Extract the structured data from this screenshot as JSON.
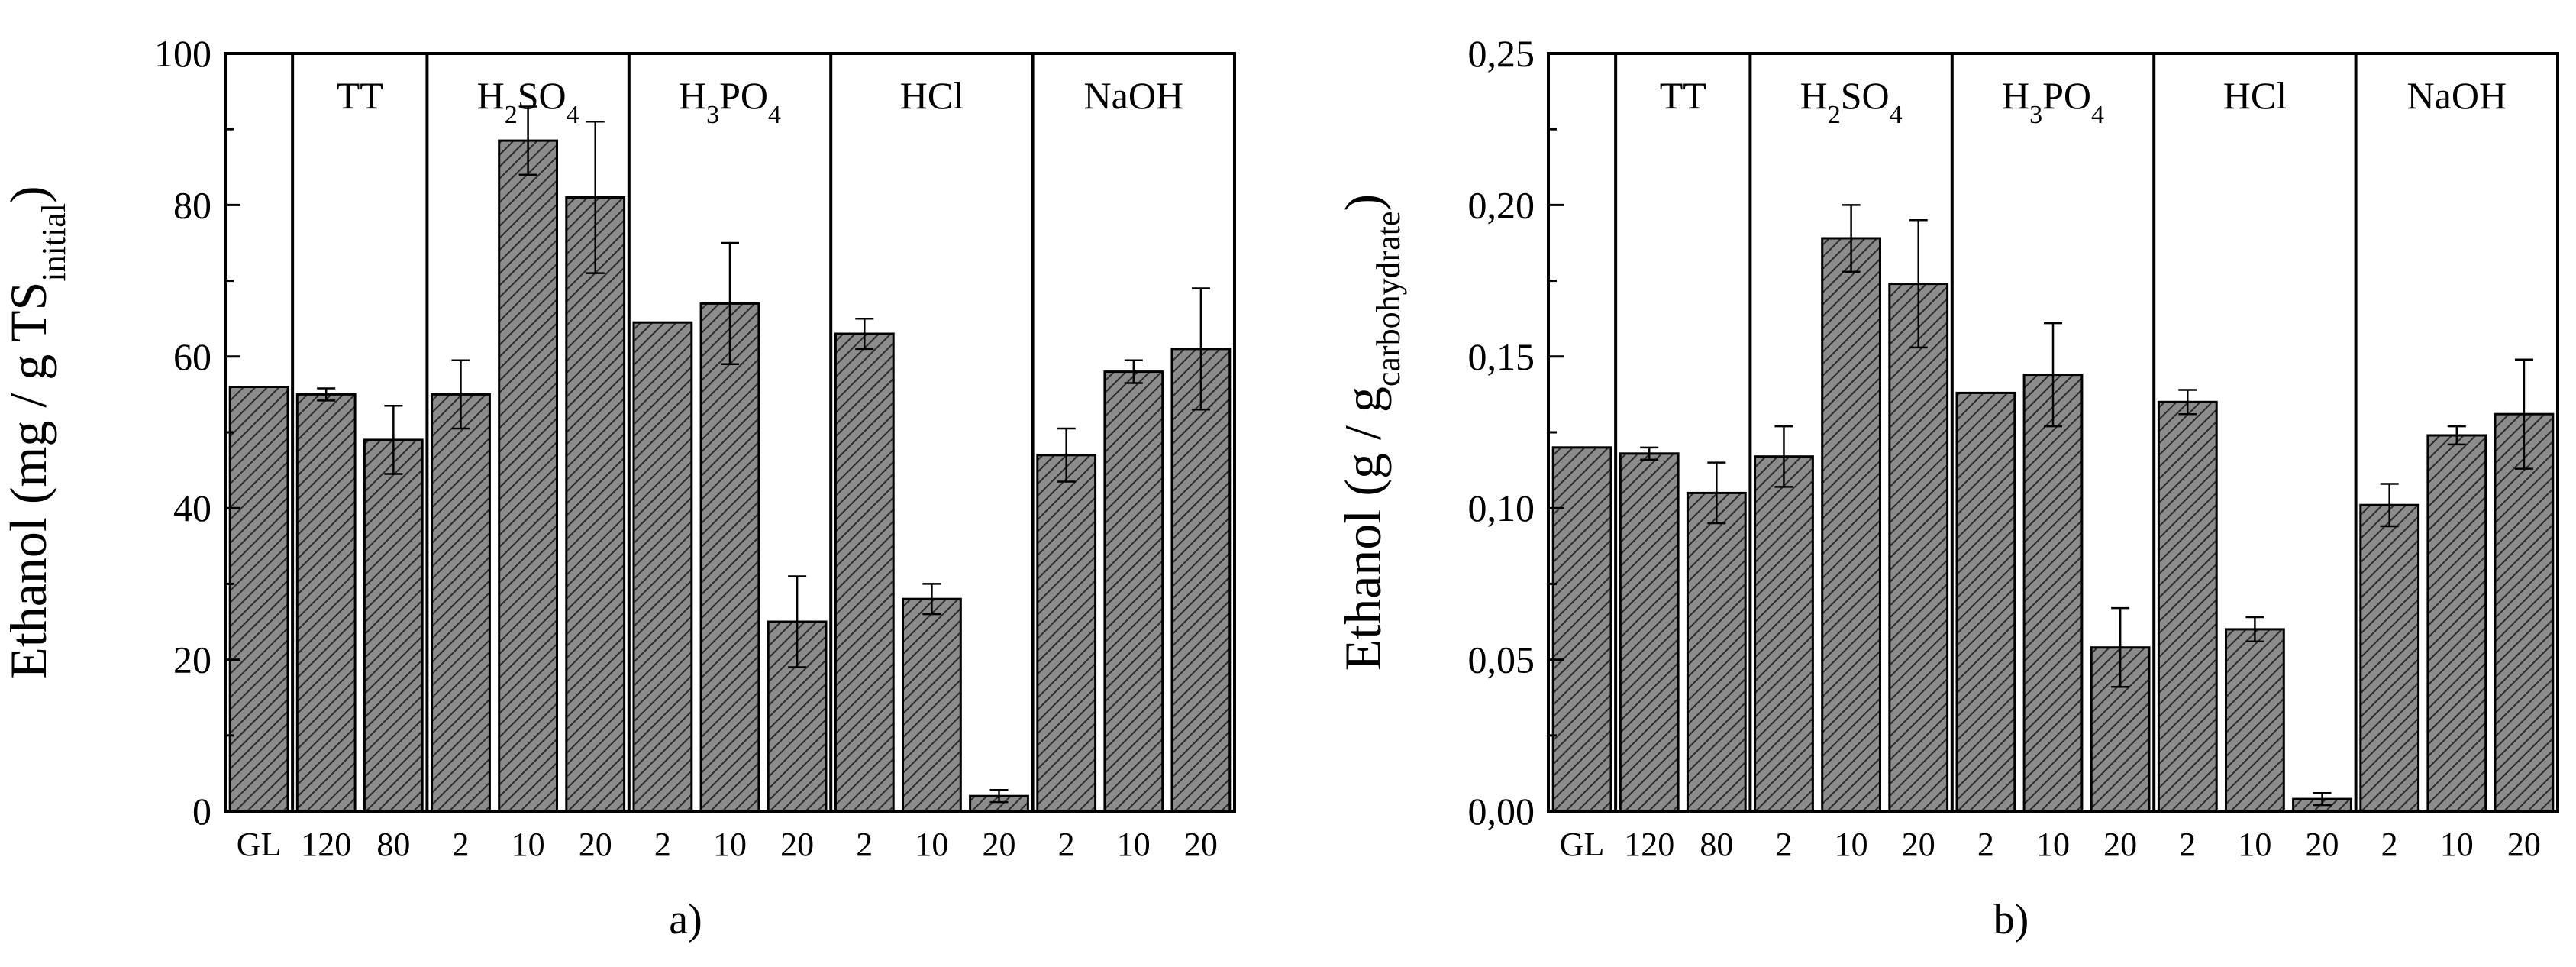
{
  "chart_data": [
    {
      "type": "bar",
      "panel_label": "a)",
      "ylabel": {
        "main": "Ethanol (mg / g TS",
        "sub": "initial",
        "close": ")"
      },
      "ylim": [
        0,
        100
      ],
      "yticks": [
        0,
        20,
        40,
        60,
        80,
        100
      ],
      "yticks_labels": [
        "0",
        "20",
        "40",
        "60",
        "80",
        "100"
      ],
      "categories": [
        "GL",
        "120",
        "80",
        "2",
        "10",
        "20",
        "2",
        "10",
        "20",
        "2",
        "10",
        "20",
        "2",
        "10",
        "20"
      ],
      "values": [
        56,
        55,
        49,
        55,
        88.5,
        81,
        64.5,
        67,
        25,
        63,
        28,
        2,
        47,
        58,
        61
      ],
      "errors": [
        0,
        0.8,
        4.5,
        4.5,
        4.5,
        10,
        0,
        8,
        6,
        2,
        2,
        0.8,
        3.5,
        1.5,
        8
      ],
      "groups": [
        {
          "label": "TT",
          "parts": [
            {
              "t": "TT",
              "sub": false
            }
          ]
        },
        {
          "label": "H2SO4",
          "parts": [
            {
              "t": "H",
              "sub": false
            },
            {
              "t": "2",
              "sub": true
            },
            {
              "t": "SO",
              "sub": false
            },
            {
              "t": "4",
              "sub": true
            }
          ]
        },
        {
          "label": "H3PO4",
          "parts": [
            {
              "t": "H",
              "sub": false
            },
            {
              "t": "3",
              "sub": true
            },
            {
              "t": "PO",
              "sub": false
            },
            {
              "t": "4",
              "sub": true
            }
          ]
        },
        {
          "label": "HCl",
          "parts": [
            {
              "t": "HCl",
              "sub": false
            }
          ]
        },
        {
          "label": "NaOH",
          "parts": [
            {
              "t": "NaOH",
              "sub": false
            }
          ]
        }
      ]
    },
    {
      "type": "bar",
      "panel_label": "b)",
      "ylabel": {
        "main": "Ethanol (g / g",
        "sub": "carbohydrate",
        "close": ")"
      },
      "ylim": [
        0,
        0.25
      ],
      "yticks": [
        0,
        0.05,
        0.1,
        0.15,
        0.2,
        0.25
      ],
      "yticks_labels": [
        "0,00",
        "0,05",
        "0,10",
        "0,15",
        "0,20",
        "0,25"
      ],
      "categories": [
        "GL",
        "120",
        "80",
        "2",
        "10",
        "20",
        "2",
        "10",
        "20",
        "2",
        "10",
        "20",
        "2",
        "10",
        "20"
      ],
      "values": [
        0.12,
        0.118,
        0.105,
        0.117,
        0.189,
        0.174,
        0.138,
        0.144,
        0.054,
        0.135,
        0.06,
        0.004,
        0.101,
        0.124,
        0.131
      ],
      "errors": [
        0,
        0.002,
        0.01,
        0.01,
        0.011,
        0.021,
        0,
        0.017,
        0.013,
        0.004,
        0.004,
        0.002,
        0.007,
        0.003,
        0.018
      ],
      "groups": [
        {
          "label": "TT",
          "parts": [
            {
              "t": "TT",
              "sub": false
            }
          ]
        },
        {
          "label": "H2SO4",
          "parts": [
            {
              "t": "H",
              "sub": false
            },
            {
              "t": "2",
              "sub": true
            },
            {
              "t": "SO",
              "sub": false
            },
            {
              "t": "4",
              "sub": true
            }
          ]
        },
        {
          "label": "H3PO4",
          "parts": [
            {
              "t": "H",
              "sub": false
            },
            {
              "t": "3",
              "sub": true
            },
            {
              "t": "PO",
              "sub": false
            },
            {
              "t": "4",
              "sub": true
            }
          ]
        },
        {
          "label": "HCl",
          "parts": [
            {
              "t": "HCl",
              "sub": false
            }
          ]
        },
        {
          "label": "NaOH",
          "parts": [
            {
              "t": "NaOH",
              "sub": false
            }
          ]
        }
      ]
    }
  ]
}
